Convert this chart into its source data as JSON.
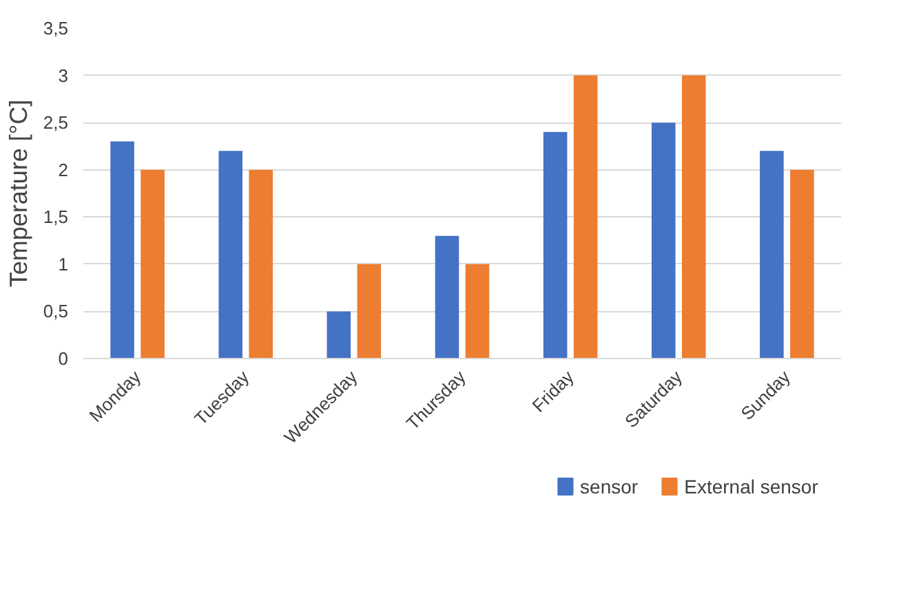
{
  "chart_data": {
    "type": "bar",
    "ylabel": "Temperature [°C]",
    "categories": [
      "Monday",
      "Tuesday",
      "Wednesday",
      "Thursday",
      "Friday",
      "Saturday",
      "Sunday"
    ],
    "series": [
      {
        "name": "sensor",
        "color": "#4472c4",
        "values": [
          2.3,
          2.2,
          0.5,
          1.3,
          2.4,
          2.5,
          2.2
        ]
      },
      {
        "name": "External sensor",
        "color": "#ed7d31",
        "values": [
          2,
          2,
          1,
          1,
          3,
          3,
          2
        ]
      }
    ],
    "ylim": [
      0,
      3.5
    ],
    "yticks": [
      0,
      {
        "value": 0.5,
        "label": "0,5"
      },
      1,
      {
        "value": 1.5,
        "label": "1,5"
      },
      2,
      {
        "value": 2.5,
        "label": "2,5"
      },
      3,
      {
        "value": 3.5,
        "label": "3,5"
      }
    ],
    "grid": "y",
    "legend": "bottom"
  }
}
